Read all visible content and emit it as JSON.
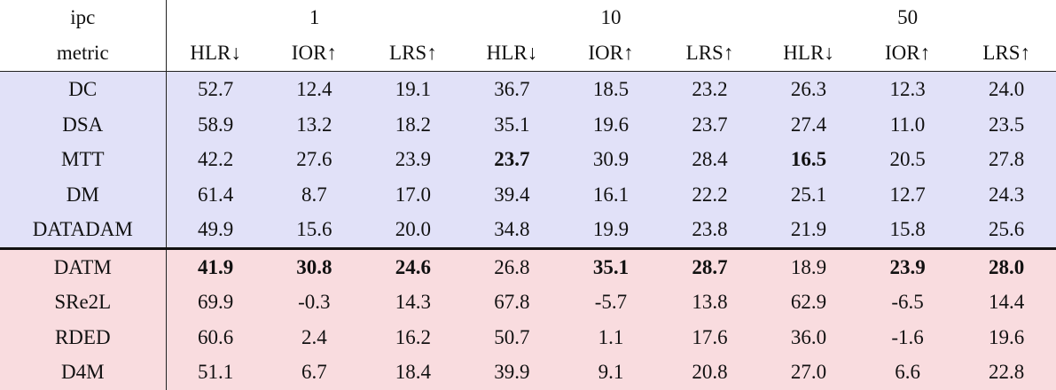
{
  "header": {
    "ipc_label": "ipc",
    "metric_label": "metric",
    "ipc_values": [
      "1",
      "10",
      "50"
    ],
    "metrics": [
      "HLR↓",
      "IOR↑",
      "LRS↑",
      "HLR↓",
      "IOR↑",
      "LRS↑",
      "HLR↓",
      "IOR↑",
      "LRS↑"
    ]
  },
  "colors": {
    "group_a_background": "#e1e1f8",
    "group_b_background": "#f9dcdf"
  },
  "rows": [
    {
      "method": "DC",
      "group": "a",
      "values": [
        "52.7",
        "12.4",
        "19.1",
        "36.7",
        "18.5",
        "23.2",
        "26.3",
        "12.3",
        "24.0"
      ],
      "bold": []
    },
    {
      "method": "DSA",
      "group": "a",
      "values": [
        "58.9",
        "13.2",
        "18.2",
        "35.1",
        "19.6",
        "23.7",
        "27.4",
        "11.0",
        "23.5"
      ],
      "bold": []
    },
    {
      "method": "MTT",
      "group": "a",
      "values": [
        "42.2",
        "27.6",
        "23.9",
        "23.7",
        "30.9",
        "28.4",
        "16.5",
        "20.5",
        "27.8"
      ],
      "bold": [
        3,
        6
      ]
    },
    {
      "method": "DM",
      "group": "a",
      "values": [
        "61.4",
        "8.7",
        "17.0",
        "39.4",
        "16.1",
        "22.2",
        "25.1",
        "12.7",
        "24.3"
      ],
      "bold": []
    },
    {
      "method": "DATADAM",
      "group": "a",
      "values": [
        "49.9",
        "15.6",
        "20.0",
        "34.8",
        "19.9",
        "23.8",
        "21.9",
        "15.8",
        "25.6"
      ],
      "bold": []
    },
    {
      "method": "DATM",
      "group": "b",
      "values": [
        "41.9",
        "30.8",
        "24.6",
        "26.8",
        "35.1",
        "28.7",
        "18.9",
        "23.9",
        "28.0"
      ],
      "bold": [
        0,
        1,
        2,
        4,
        5,
        7,
        8
      ]
    },
    {
      "method": "SRe2L",
      "group": "b",
      "values": [
        "69.9",
        "-0.3",
        "14.3",
        "67.8",
        "-5.7",
        "13.8",
        "62.9",
        "-6.5",
        "14.4"
      ],
      "bold": []
    },
    {
      "method": "RDED",
      "group": "b",
      "values": [
        "60.6",
        "2.4",
        "16.2",
        "50.7",
        "1.1",
        "17.6",
        "36.0",
        "-1.6",
        "19.6"
      ],
      "bold": []
    },
    {
      "method": "D4M",
      "group": "b",
      "values": [
        "51.1",
        "6.7",
        "18.4",
        "39.9",
        "9.1",
        "20.8",
        "27.0",
        "6.6",
        "22.8"
      ],
      "bold": []
    }
  ]
}
